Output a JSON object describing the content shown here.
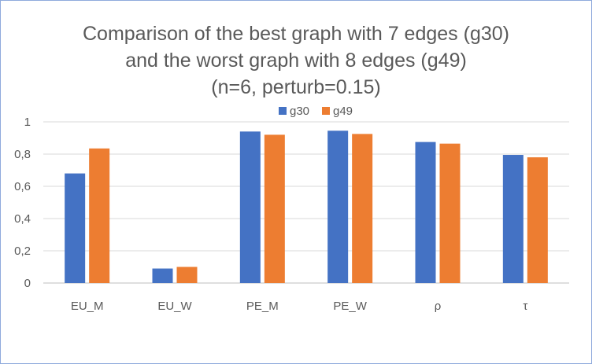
{
  "chart_data": {
    "type": "bar",
    "title_lines": [
      "Comparison of the best graph with 7 edges (g30)",
      "and the worst graph with 8 edges (g49)",
      "(n=6, perturb=0.15)"
    ],
    "categories": [
      "EU_M",
      "EU_W",
      "PE_M",
      "PE_W",
      "ρ",
      "τ"
    ],
    "series": [
      {
        "name": "g30",
        "color": "#4472c4",
        "values": [
          0.68,
          0.09,
          0.94,
          0.945,
          0.875,
          0.795
        ]
      },
      {
        "name": "g49",
        "color": "#ed7d31",
        "values": [
          0.835,
          0.1,
          0.92,
          0.925,
          0.865,
          0.78
        ]
      }
    ],
    "yticks": [
      "0",
      "0,2",
      "0,4",
      "0,6",
      "0,8",
      "1"
    ],
    "ylim": [
      0,
      1
    ],
    "grid": true,
    "legend_position": "top"
  }
}
